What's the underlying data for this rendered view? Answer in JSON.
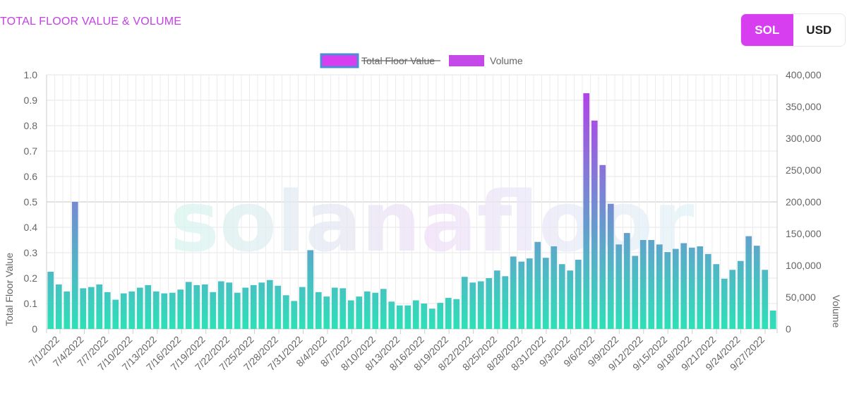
{
  "header": {
    "title": "TOTAL FLOOR VALUE & VOLUME"
  },
  "currency_toggle": {
    "options": [
      "SOL",
      "USD"
    ],
    "selected": "SOL"
  },
  "watermark": "solanafloor",
  "colors": {
    "accent": "#d63ef0",
    "legend_volume": "#c548e8",
    "bar_low": "#2de0b8",
    "bar_high": "#b044e8",
    "title": "#c43fe6"
  },
  "chart_data": {
    "type": "bar",
    "title": "",
    "legend": [
      {
        "name": "Total Floor Value",
        "hidden": true,
        "color": "#d63ef0"
      },
      {
        "name": "Volume",
        "hidden": false,
        "color": "#c548e8"
      }
    ],
    "legend_position": "top-center",
    "y_left": {
      "label": "Total Floor Value",
      "ylim": [
        0,
        1.0
      ],
      "ticks": [
        "0",
        "0.1",
        "0.2",
        "0.3",
        "0.4",
        "0.5",
        "0.6",
        "0.7",
        "0.8",
        "0.9",
        "1.0"
      ]
    },
    "y_right": {
      "label": "Volume",
      "ylim": [
        0,
        400000
      ],
      "ticks": [
        "0",
        "50,000",
        "100,000",
        "150,000",
        "200,000",
        "250,000",
        "300,000",
        "350,000",
        "400,000"
      ]
    },
    "grid": true,
    "x_tick_labels": [
      "7/1/2022",
      "7/4/2022",
      "7/7/2022",
      "7/10/2022",
      "7/13/2022",
      "7/16/2022",
      "7/19/2022",
      "7/22/2022",
      "7/25/2022",
      "7/28/2022",
      "7/31/2022",
      "8/4/2022",
      "8/7/2022",
      "8/10/2022",
      "8/13/2022",
      "8/16/2022",
      "8/19/2022",
      "8/22/2022",
      "8/25/2022",
      "8/28/2022",
      "8/31/2022",
      "9/3/2022",
      "9/6/2022",
      "9/9/2022",
      "9/12/2022",
      "9/15/2022",
      "9/18/2022",
      "9/21/2022",
      "9/24/2022",
      "9/27/2022"
    ],
    "series": [
      {
        "name": "Volume",
        "values": [
          90000,
          70000,
          59000,
          200000,
          64000,
          66000,
          70000,
          58000,
          46000,
          56000,
          59000,
          65000,
          69000,
          59000,
          56000,
          57000,
          62000,
          74000,
          69000,
          70000,
          58000,
          75000,
          73000,
          57000,
          65000,
          69000,
          73000,
          77000,
          68000,
          53000,
          44000,
          66000,
          124000,
          58000,
          51000,
          65000,
          64000,
          45000,
          51000,
          59000,
          57000,
          63000,
          43000,
          37000,
          37000,
          45000,
          40000,
          32000,
          41000,
          49000,
          47000,
          82000,
          73000,
          75000,
          80000,
          92000,
          83000,
          114000,
          106000,
          111000,
          137000,
          112000,
          130000,
          102000,
          92000,
          109000,
          371000,
          328000,
          258000,
          197000,
          133000,
          151000,
          115000,
          140000,
          140000,
          133000,
          121000,
          126000,
          135000,
          128000,
          130000,
          118000,
          102000,
          79000,
          93000,
          107000,
          146000,
          131000,
          93000,
          29000
        ]
      }
    ]
  }
}
